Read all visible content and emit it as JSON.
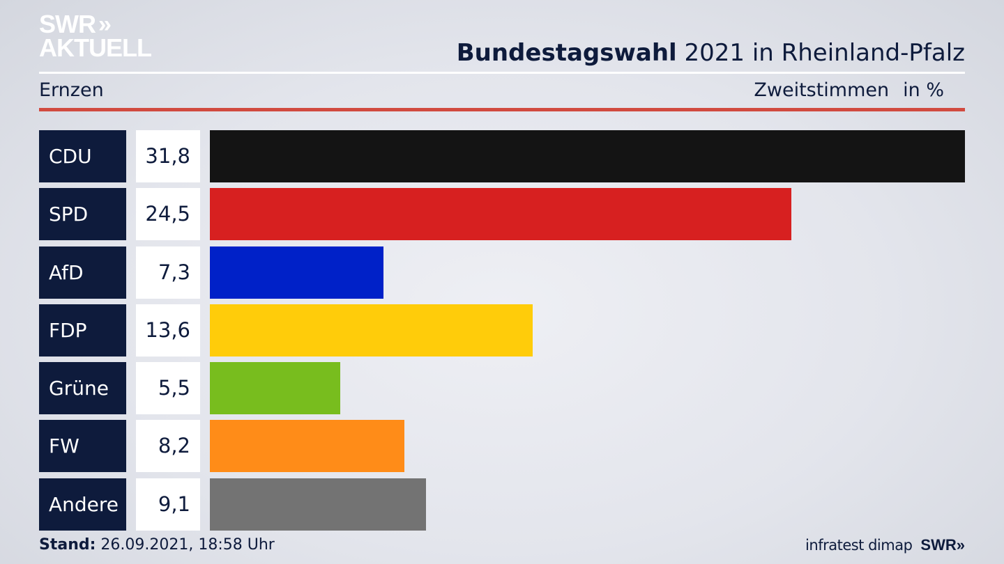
{
  "logo": {
    "line1": "SWR",
    "chevrons": "»",
    "line2": "AKTUELL"
  },
  "header": {
    "title_bold": "Bundestagswahl",
    "title_rest": " 2021 in Rheinland-Pfalz",
    "location": "Ernzen",
    "measure": "Zweitstimmen",
    "unit": "in %"
  },
  "chart_data": {
    "type": "bar",
    "orientation": "horizontal",
    "categories": [
      "CDU",
      "SPD",
      "AfD",
      "FDP",
      "Grüne",
      "FW",
      "Andere"
    ],
    "values": [
      31.8,
      24.5,
      7.3,
      13.6,
      5.5,
      8.2,
      9.1
    ],
    "value_labels": [
      "31,8",
      "24,5",
      "7,3",
      "13,6",
      "5,5",
      "8,2",
      "9,1"
    ],
    "colors": [
      "#141414",
      "#d72020",
      "#0021c8",
      "#ffcc0a",
      "#78bd1e",
      "#ff8c18",
      "#737373"
    ],
    "xlim": [
      0,
      31.8
    ]
  },
  "footer": {
    "stand_label": "Stand:",
    "stand_value": " 26.09.2021, 18:58 Uhr",
    "source": "infratest dimap",
    "brand": "SWR",
    "brand_chevrons": "»"
  }
}
